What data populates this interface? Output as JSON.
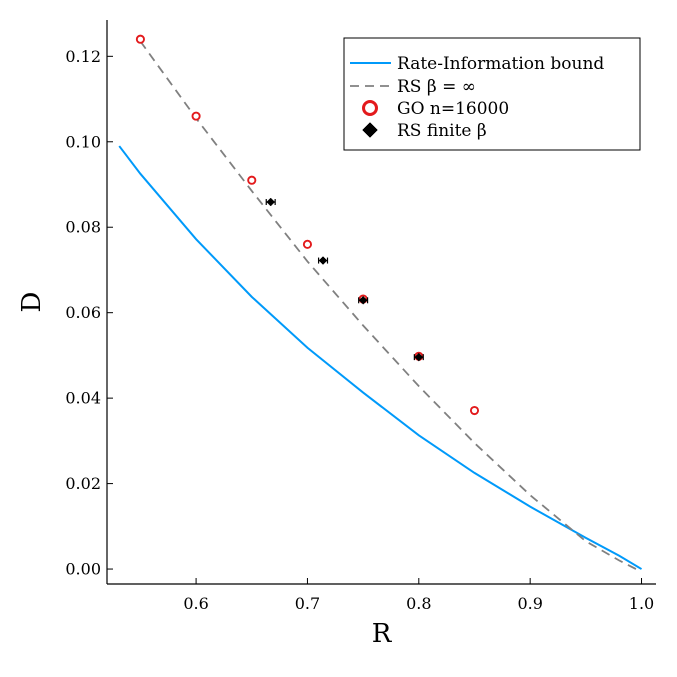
{
  "chart_data": {
    "type": "line",
    "xlabel": "R",
    "ylabel": "D",
    "xlim": [
      0.52,
      1.013
    ],
    "ylim": [
      -0.0035,
      0.1285
    ],
    "xticks": [
      0.6,
      0.7,
      0.8,
      0.9,
      1.0
    ],
    "xtick_labels": [
      "0.6",
      "0.7",
      "0.8",
      "0.9",
      "1.0"
    ],
    "yticks": [
      0.0,
      0.02,
      0.04,
      0.06,
      0.08,
      0.1,
      0.12
    ],
    "ytick_labels": [
      "0.00",
      "0.02",
      "0.04",
      "0.06",
      "0.08",
      "0.10",
      "0.12"
    ],
    "grid": false,
    "legend_position": "top-right",
    "series": [
      {
        "name": "Rate-Information bound",
        "kind": "line",
        "color": "#009AFA",
        "x": [
          0.531,
          0.55,
          0.6,
          0.65,
          0.7,
          0.75,
          0.8,
          0.85,
          0.9,
          0.95,
          0.98,
          1.0
        ],
        "y": [
          0.099,
          0.0925,
          0.0772,
          0.0637,
          0.0518,
          0.0413,
          0.0313,
          0.0225,
          0.0146,
          0.0073,
          0.0031,
          0.0
        ]
      },
      {
        "name": "RS β = ∞",
        "kind": "dashed",
        "color": "#808080",
        "x": [
          0.55,
          0.6,
          0.65,
          0.7,
          0.75,
          0.8,
          0.85,
          0.9,
          0.95,
          0.98,
          0.995
        ],
        "y": [
          0.1235,
          0.1055,
          0.0885,
          0.072,
          0.057,
          0.0428,
          0.0295,
          0.0173,
          0.0065,
          0.002,
          0.0
        ]
      },
      {
        "name": "GO n=16000",
        "kind": "open-circle",
        "color": "#E31A1C",
        "x": [
          0.55,
          0.6,
          0.65,
          0.7,
          0.75,
          0.8,
          0.85
        ],
        "y": [
          0.124,
          0.106,
          0.091,
          0.076,
          0.0632,
          0.0498,
          0.0371
        ]
      },
      {
        "name": "RS finite β",
        "kind": "diamond",
        "color": "#000000",
        "x": [
          0.667,
          0.714,
          0.75,
          0.8
        ],
        "y": [
          0.0859,
          0.0722,
          0.0629,
          0.0496
        ],
        "xerr": [
          0.004,
          0.004,
          0.004,
          0.004
        ],
        "yerr": [
          0.0008,
          0.0006,
          0.0005,
          0.0005
        ]
      }
    ]
  }
}
